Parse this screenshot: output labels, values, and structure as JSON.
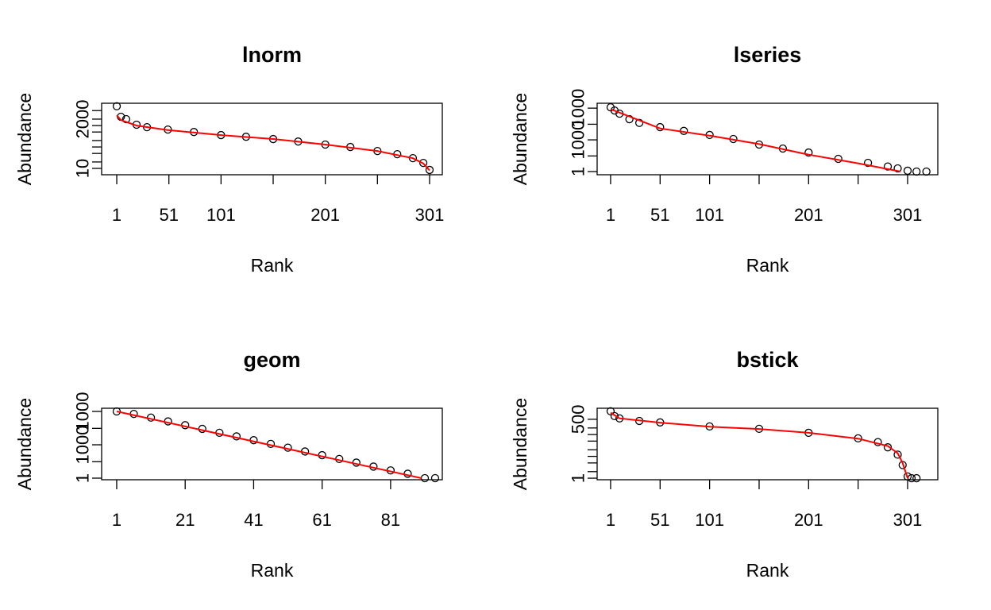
{
  "chart_data": [
    {
      "type": "scatter",
      "title": "lnorm",
      "xlabel": "Rank",
      "ylabel": "Abundance",
      "log_y": true,
      "xlim": [
        -13.5,
        313.2
      ],
      "xticks": [
        1,
        51,
        101,
        201,
        301
      ],
      "xticks_unlabeled": [
        151,
        251
      ],
      "ylim": [
        5.06,
        11000
      ],
      "yticks": [
        10,
        2000
      ],
      "yticks_unlabeled": [
        20,
        50,
        100,
        200,
        500,
        1000,
        5000
      ],
      "points": {
        "color": "#000000",
        "x": [
          1,
          5,
          10,
          20,
          30,
          50,
          75,
          101,
          125,
          151,
          175,
          201,
          225,
          251,
          270,
          285,
          295,
          301
        ],
        "values": [
          8000,
          2570,
          2000,
          1100,
          840,
          650,
          500,
          360,
          300,
          235,
          180,
          130,
          100,
          65,
          46,
          30,
          18,
          8.5
        ]
      },
      "fit": {
        "color": "#ff0000",
        "x": [
          1,
          5,
          20,
          50,
          101,
          151,
          201,
          251,
          285,
          295,
          301
        ],
        "values": [
          3000,
          1800,
          1000,
          620,
          360,
          235,
          130,
          65,
          30,
          17,
          8
        ]
      }
    },
    {
      "type": "scatter",
      "title": "lseries",
      "xlabel": "Rank",
      "ylabel": "Abundance",
      "log_y": true,
      "xlim": [
        -12.6,
        331.5
      ],
      "xticks": [
        1,
        51,
        101,
        201,
        301
      ],
      "xticks_unlabeled": [
        151,
        251
      ],
      "ylim": [
        0.5,
        2900000
      ],
      "yticks": [
        1,
        1000,
        {
          "value": 1000000,
          "label": "1000"
        }
      ],
      "yticks_unlabeled": [
        30,
        30000
      ],
      "points": {
        "color": "#000000",
        "x": [
          1,
          5,
          10,
          20,
          30,
          51,
          75,
          101,
          125,
          151,
          175,
          201,
          231,
          261,
          281,
          291,
          301,
          310,
          320
        ],
        "values": [
          1200000,
          600000,
          300000,
          90000,
          40000,
          16000,
          7000,
          2900,
          1200,
          360,
          150,
          63,
          16,
          6.7,
          3,
          2,
          1.2,
          1,
          1
        ]
      },
      "fit": {
        "color": "#ff0000",
        "x": [
          1,
          51,
          101,
          151,
          201,
          251,
          294
        ],
        "values": [
          800000,
          12000,
          2500,
          400,
          40,
          6,
          1
        ]
      }
    },
    {
      "type": "scatter",
      "title": "geom",
      "xlabel": "Rank",
      "ylabel": "Abundance",
      "log_y": true,
      "xlim": [
        -3.4,
        96.1
      ],
      "xticks": [
        1,
        21,
        41,
        61,
        81
      ],
      "xticks_unlabeled": [],
      "ylim": [
        0.72,
        1930000
      ],
      "yticks": [
        1,
        1000,
        {
          "value": 1000000,
          "label": "1000"
        }
      ],
      "yticks_unlabeled": [
        30,
        30000
      ],
      "points": {
        "color": "#000000",
        "x": [
          1,
          6,
          11,
          16,
          21,
          26,
          31,
          36,
          41,
          46,
          51,
          56,
          61,
          66,
          71,
          76,
          81,
          86,
          91,
          94
        ],
        "values": [
          1000000,
          600000,
          280000,
          127000,
          58000,
          27000,
          12000,
          5700,
          2600,
          1200,
          550,
          250,
          117,
          53,
          25,
          11,
          5,
          2.5,
          1,
          1
        ]
      },
      "fit": {
        "color": "#ff0000",
        "x": [
          1,
          90
        ],
        "values": [
          1000000,
          1
        ]
      }
    },
    {
      "type": "scatter",
      "title": "bstick",
      "xlabel": "Rank",
      "ylabel": "Abundance",
      "log_y": true,
      "xlim": [
        -12.6,
        331.5
      ],
      "xticks": [
        1,
        51,
        101,
        201,
        301
      ],
      "xticks_unlabeled": [
        151,
        251
      ],
      "ylim": [
        0.85,
        1600
      ],
      "yticks": [
        1,
        500
      ],
      "yticks_unlabeled": [
        2,
        5,
        10,
        20,
        50,
        100,
        200
      ],
      "points": {
        "color": "#000000",
        "x": [
          1,
          5,
          10,
          30,
          51,
          101,
          151,
          201,
          251,
          271,
          281,
          291,
          296,
          301,
          305,
          310
        ],
        "values": [
          1170,
          700,
          550,
          420,
          360,
          235,
          183,
          120,
          67,
          45,
          26,
          12,
          4,
          1.2,
          1,
          1
        ]
      },
      "fit": {
        "color": "#ff0000",
        "x": [
          1,
          10,
          51,
          101,
          151,
          201,
          251,
          281,
          291,
          296,
          301
        ],
        "values": [
          1000,
          550,
          350,
          230,
          180,
          120,
          65,
          30,
          14,
          5,
          1
        ]
      }
    }
  ]
}
